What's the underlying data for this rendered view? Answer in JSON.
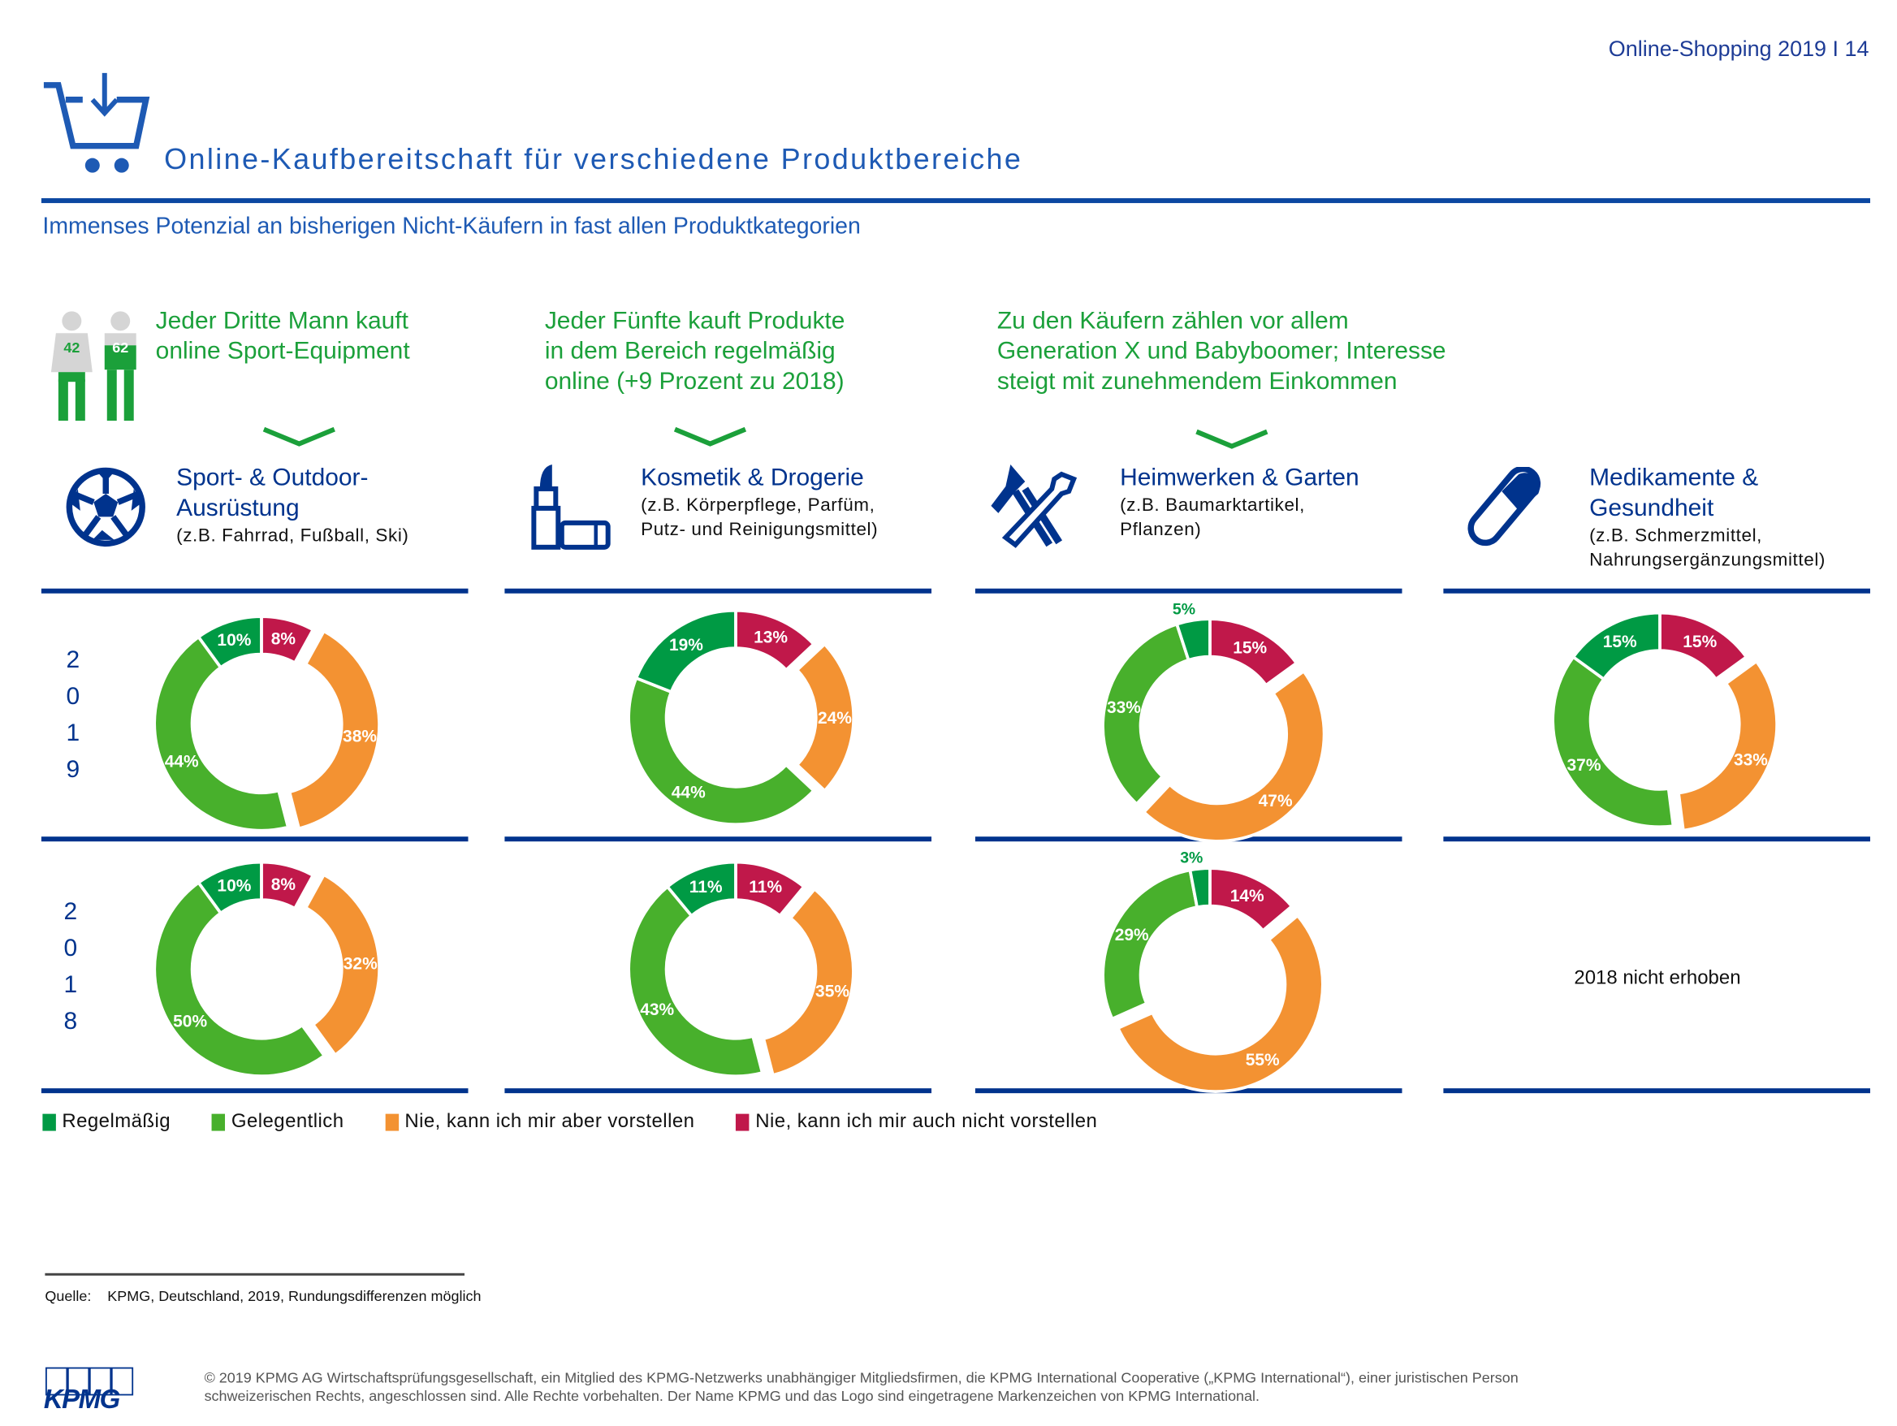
{
  "header": {
    "page_label": "Online-Shopping 2019 I 14",
    "title": "Online-Kaufbereitschaft für verschiedene Produktbereiche",
    "subtitle": "Immenses Potenzial an bisherigen Nicht-Käufern in fast allen Produktkategorien"
  },
  "people_icon": {
    "values": [
      "42",
      "62"
    ]
  },
  "headlines": [
    {
      "lines": [
        "Jeder Dritte Mann kauft",
        "online Sport-Equipment"
      ]
    },
    {
      "lines": [
        "Jeder Fünfte kauft Produkte",
        "in dem Bereich regelmäßig",
        "online (+9 Prozent zu 2018)"
      ]
    },
    {
      "lines": [
        "Zu den Käufern zählen vor allem",
        "Generation X und Babyboomer; Interesse",
        "steigt mit zunehmendem Einkommen"
      ]
    }
  ],
  "categories": [
    {
      "title": [
        "Sport- & Outdoor-",
        "Ausrüstung"
      ],
      "sub": [
        "(z.B. Fahrrad, Fußball, Ski)"
      ],
      "icon": "soccer-ball-icon"
    },
    {
      "title": [
        "Kosmetik & Drogerie"
      ],
      "sub": [
        "(z.B. Körperpflege, Parfüm,",
        "Putz- und Reinigungsmittel)"
      ],
      "icon": "lipstick-icon"
    },
    {
      "title": [
        "Heimwerken & Garten"
      ],
      "sub": [
        "(z.B. Baumarktartikel,",
        "Pflanzen)"
      ],
      "icon": "tools-icon"
    },
    {
      "title": [
        "Medikamente &",
        "Gesundheit"
      ],
      "sub": [
        "(z.B. Schmerzmittel,",
        "Nahrungsergänzungsmittel)"
      ],
      "icon": "pill-icon"
    }
  ],
  "years": [
    [
      "2",
      "0",
      "1",
      "9"
    ],
    [
      "2",
      "0",
      "1",
      "8"
    ]
  ],
  "not_surveyed": "2018 nicht erhoben",
  "colors": {
    "regelmaessig": "#009a44",
    "gelegentlich": "#48b02c",
    "nie_aber": "#f39232",
    "nie_nicht": "#c0184a",
    "brand": "#00338d"
  },
  "chart_data": {
    "type": "pie",
    "variant": "donut",
    "legend": [
      "Regelmäßig",
      "Gelegentlich",
      "Nie, kann ich mir aber vorstellen",
      "Nie, kann ich mir auch nicht vorstellen"
    ],
    "legend_position": "bottom-left",
    "unit": "%",
    "charts": [
      {
        "category": "Sport- & Outdoor-Ausrüstung",
        "year": "2019",
        "values": [
          10,
          44,
          38,
          8
        ]
      },
      {
        "category": "Kosmetik & Drogerie",
        "year": "2019",
        "values": [
          19,
          44,
          24,
          13
        ]
      },
      {
        "category": "Heimwerken & Garten",
        "year": "2019",
        "values": [
          5,
          33,
          47,
          15
        ]
      },
      {
        "category": "Medikamente & Gesundheit",
        "year": "2019",
        "values": [
          15,
          37,
          33,
          15
        ]
      },
      {
        "category": "Sport- & Outdoor-Ausrüstung",
        "year": "2018",
        "values": [
          10,
          50,
          32,
          8
        ]
      },
      {
        "category": "Kosmetik & Drogerie",
        "year": "2018",
        "values": [
          11,
          43,
          35,
          11
        ]
      },
      {
        "category": "Heimwerken & Garten",
        "year": "2018",
        "values": [
          3,
          29,
          55,
          14
        ]
      }
    ]
  },
  "footer": {
    "source": "Quelle:    KPMG, Deutschland, 2019, Rundungsdifferenzen möglich",
    "copyright": [
      "© 2019 KPMG AG Wirtschaftsprüfungsgesellschaft, ein Mitglied des KPMG-Netzwerks unabhängiger Mitgliedsfirmen, die KPMG International Cooperative („KPMG International“), einer juristischen Person",
      "schweizerischen Rechts, angeschlossen sind. Alle Rechte vorbehalten. Der Name KPMG und das Logo sind eingetragene Markenzeichen von KPMG International."
    ],
    "logo": "KPMG"
  }
}
